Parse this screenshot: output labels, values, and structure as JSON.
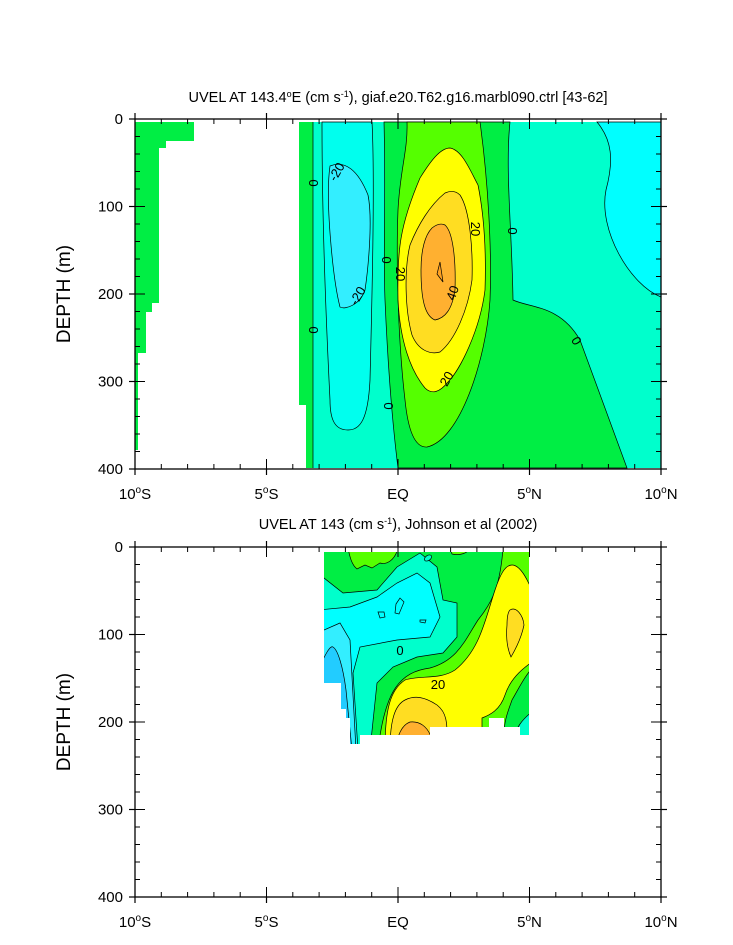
{
  "chart_data": [
    {
      "type": "contour",
      "title": "UVEL AT 143.4°E (cm s-1), giaf.e20.T62.g16.marbl090.ctrl [43-62]",
      "title_parts": [
        "UVEL AT 143.4",
        "o",
        "E (cm s",
        "-1",
        "), giaf.e20.T62.g16.marbl090.ctrl [43-62]"
      ],
      "xlabel": "",
      "ylabel": "DEPTH (m)",
      "xlim": [
        -10,
        10
      ],
      "ylim": [
        400,
        0
      ],
      "x_ticks": [
        -10,
        -5,
        0,
        5,
        10
      ],
      "x_tick_labels": [
        "10°S",
        "5°S",
        "EQ",
        "5°N",
        "10°N"
      ],
      "y_ticks": [
        0,
        100,
        200,
        300,
        400
      ],
      "y_tick_labels": [
        "0",
        "100",
        "200",
        "300",
        "400"
      ],
      "contour_interval": 10,
      "contour_labels": [
        "0",
        "-20",
        "-20",
        "0",
        "0",
        "20",
        "40",
        "20",
        "0",
        "0",
        "20",
        "0"
      ],
      "colors": {
        "n30": "#22ccff",
        "n20": "#33eeff",
        "n10": "#00ffee",
        "n0": "#00ffcc",
        "p0": "#00ee44",
        "p10": "#55ff00",
        "p20": "#ffff00",
        "p30": "#ffdd22",
        "p40": "#ffb030"
      }
    },
    {
      "type": "contour",
      "title": "UVEL AT 143 (cm s-1), Johnson et al (2002)",
      "title_parts": [
        "UVEL AT 143 (cm s",
        "-1",
        "), Johnson et al (2002)"
      ],
      "xlabel": "",
      "ylabel": "DEPTH (m)",
      "xlim": [
        -10,
        10
      ],
      "ylim": [
        400,
        0
      ],
      "x_ticks": [
        -10,
        -5,
        0,
        5,
        10
      ],
      "x_tick_labels": [
        "10°S",
        "5°S",
        "EQ",
        "5°N",
        "10°N"
      ],
      "y_ticks": [
        0,
        100,
        200,
        300,
        400
      ],
      "y_tick_labels": [
        "0",
        "100",
        "200",
        "300",
        "400"
      ],
      "contour_interval": 10,
      "contour_labels": [
        "0",
        "0",
        "20"
      ],
      "colors": {
        "n40": "#1199ee",
        "n30": "#22ccff",
        "n20": "#33eeff",
        "n10": "#00ffee",
        "n0": "#00ffcc",
        "p0": "#00ee44",
        "p10": "#55ff00",
        "p20": "#ffff00",
        "p30": "#ffdd22",
        "p40": "#ffb030"
      }
    }
  ]
}
